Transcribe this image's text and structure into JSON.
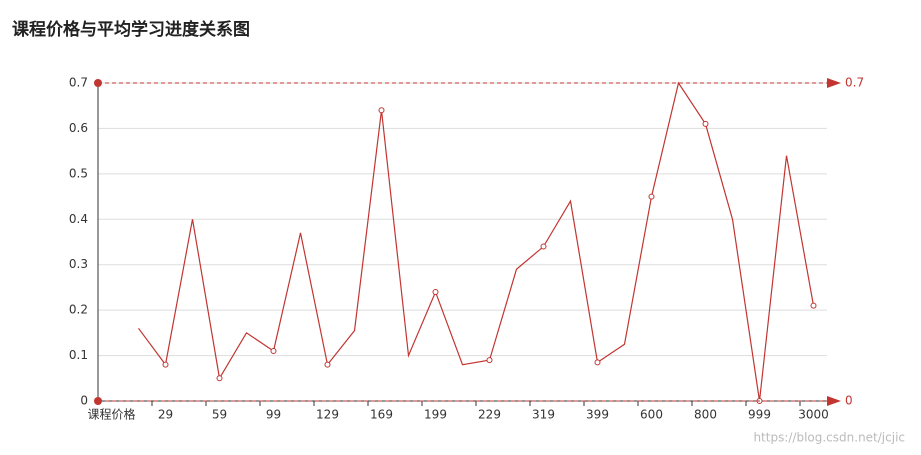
{
  "chart_data": {
    "type": "line",
    "title": "课程价格与平均学习进度关系图",
    "x_label": "课程价格",
    "categories": [
      null,
      null,
      "29",
      null,
      "59",
      null,
      "99",
      null,
      "129",
      null,
      "169",
      null,
      "199",
      null,
      "229",
      null,
      "319",
      null,
      "399",
      null,
      "600",
      null,
      "800",
      null,
      "999",
      null,
      "3000"
    ],
    "values": [
      null,
      0.16,
      0.08,
      0.4,
      0.05,
      0.15,
      0.11,
      0.37,
      0.08,
      0.155,
      0.64,
      0.1,
      0.24,
      0.08,
      0.09,
      0.29,
      0.34,
      0.44,
      0.085,
      0.125,
      0.45,
      0.7,
      0.61,
      0.4,
      0,
      0.54,
      0.21
    ],
    "color": "#c23531",
    "ylim": [
      0,
      0.7
    ],
    "yticks": [
      0,
      0.1,
      0.2,
      0.3,
      0.4,
      0.5,
      0.6,
      0.7
    ],
    "grid": true,
    "mark_lines": [
      0.7,
      0
    ],
    "watermark": "https://blog.csdn.net/jcjic"
  }
}
